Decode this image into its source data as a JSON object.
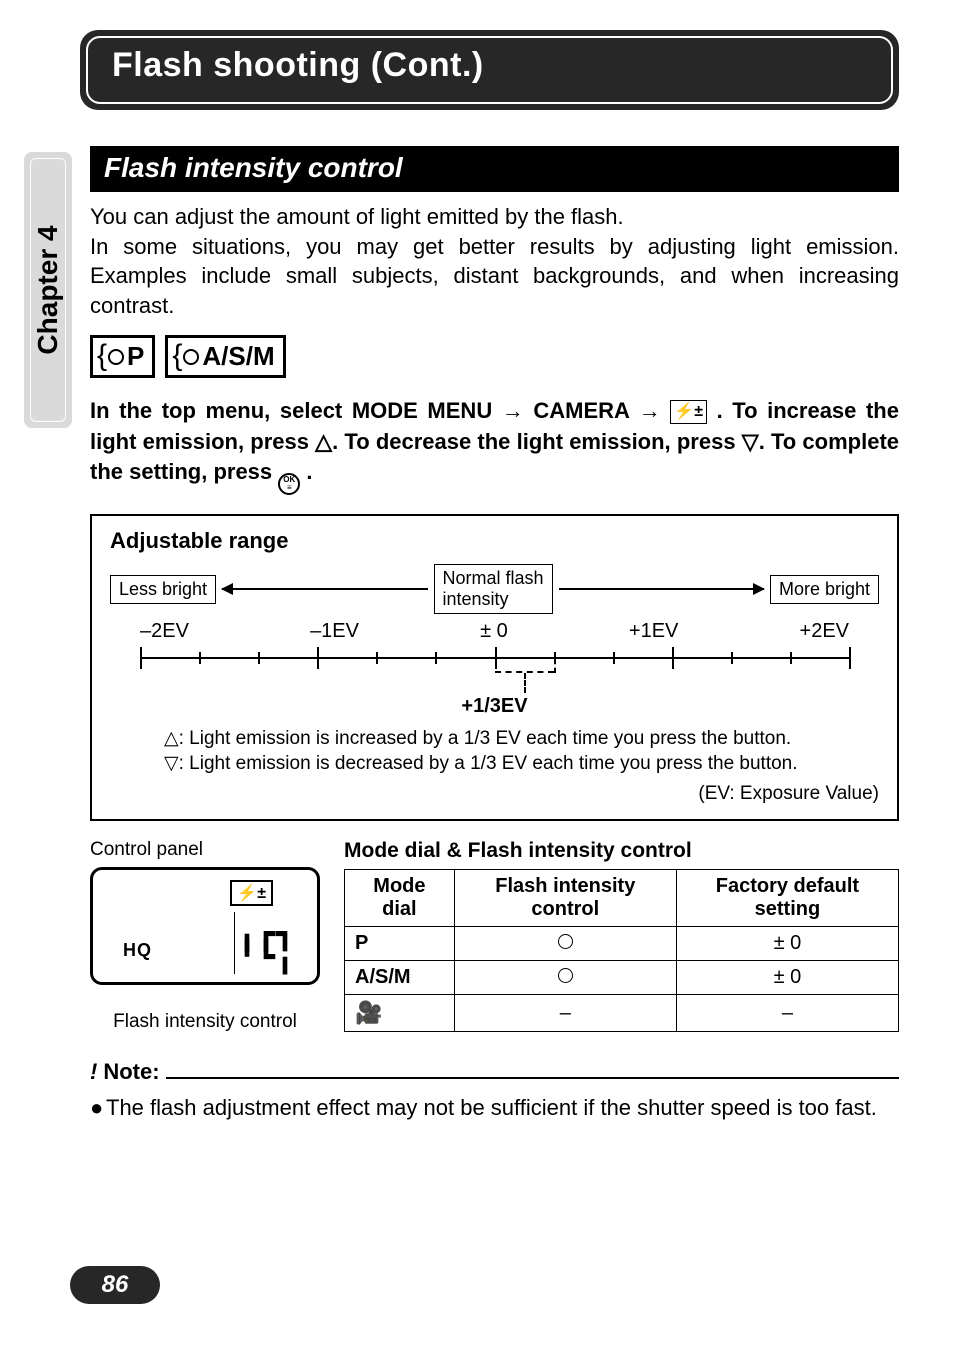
{
  "chapter_tab": "Chapter 4",
  "banner_title": "Flash shooting (Cont.)",
  "section_title": "Flash intensity control",
  "intro_l1": "You can adjust the amount of light emitted by the flash.",
  "intro_l2": "In some situations, you may get better results by adjusting light emission. Examples include small subjects, distant backgrounds, and when increasing contrast.",
  "badge1": "P",
  "badge2": "A/S/M",
  "instr_a": "In the top menu, select MODE MENU ",
  "instr_b": " CAMERA ",
  "instr_flashicon": "⚡±",
  "instr_c": " . To increase the light emission, press ",
  "instr_d": ". To decrease the light emission, press ",
  "instr_e": ". To complete the setting, press ",
  "instr_f": " .",
  "tri_up": "△",
  "tri_down": "▽",
  "ok_top": "OK",
  "ok_bot": "≡",
  "arrow": "→",
  "adj": {
    "title": "Adjustable range",
    "less": "Less bright",
    "more": "More bright",
    "normal_l1": "Normal flash",
    "normal_l2": "intensity",
    "labels": [
      "–2EV",
      "–1EV",
      "± 0",
      "+1EV",
      "+2EV"
    ],
    "step_label": "+1/3EV",
    "up_line": ": Light emission is increased by a 1/3 EV each time you press the button.",
    "down_line": ": Light emission is decreased by a 1/3 EV each time you press the button.",
    "ev_note": "(EV: Exposure Value)",
    "scale": {
      "majors_pct": [
        0,
        25,
        50,
        75,
        100
      ],
      "minors_between": 2
    }
  },
  "cp": {
    "label": "Control panel",
    "hq": "HQ",
    "seg1": "╻┏┓",
    "seg2": "╹┗╻",
    "icon": "⚡±",
    "caption": "Flash intensity control"
  },
  "table": {
    "title": "Mode dial & Flash intensity control",
    "head": [
      "Mode dial",
      "Flash intensity control",
      "Factory default setting"
    ],
    "rows": [
      {
        "mode": "P",
        "avail": "circle",
        "default": "± 0"
      },
      {
        "mode": "A/S/M",
        "avail": "circle",
        "default": "± 0"
      },
      {
        "mode": "movie",
        "avail": "–",
        "default": "–"
      }
    ]
  },
  "note": {
    "label": "Note:",
    "body": "The flash adjustment effect may not be sufficient if the shutter speed is too fast."
  },
  "page_number": "86"
}
